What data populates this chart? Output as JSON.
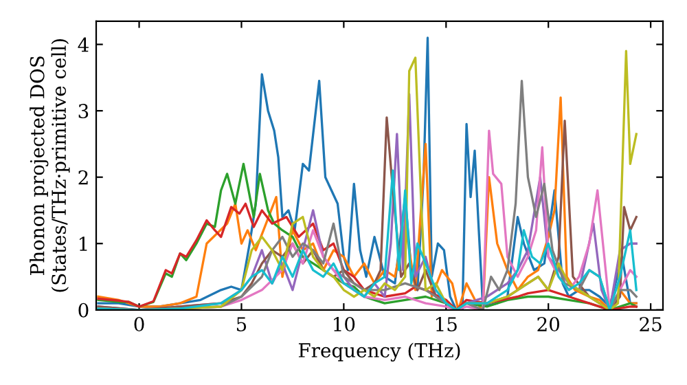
{
  "chart_data": {
    "type": "line",
    "xlabel": "Frequency (THz)",
    "ylabel": "Phonon projected DOS\n(States/THz·primitive cell)",
    "xlim": [
      -2.1,
      25.6
    ],
    "ylim": [
      0,
      4.35
    ],
    "xticks": [
      0,
      5,
      10,
      15,
      20,
      25
    ],
    "yticks": [
      0,
      1,
      2,
      3,
      4
    ],
    "grid": false,
    "legend": false,
    "marker": "none",
    "line_style": "solid",
    "series": [
      {
        "color": "#1f77b4",
        "x": [
          -2,
          -1,
          0,
          1,
          2,
          3,
          4,
          4.5,
          5,
          5.4,
          5.7,
          6,
          6.3,
          6.6,
          6.8,
          7,
          7.3,
          7.6,
          8,
          8.3,
          8.8,
          9.1,
          9.4,
          9.7,
          10,
          10.2,
          10.5,
          10.8,
          11.1,
          11.5,
          12,
          12.5,
          13,
          13.3,
          13.6,
          13.9,
          14.1,
          14.3,
          14.6,
          14.9,
          15.2,
          15.5,
          15.8,
          16,
          16.2,
          16.4,
          16.6,
          16.8,
          17.5,
          18,
          18.5,
          18.8,
          19.3,
          19.8,
          20.3,
          20.7,
          21,
          21.5,
          22,
          22.5,
          23,
          23.6,
          24,
          24.3
        ],
        "values": [
          0.1,
          0.1,
          0.05,
          0.05,
          0.1,
          0.15,
          0.3,
          0.35,
          0.3,
          1.0,
          1.6,
          3.55,
          3.0,
          2.7,
          2.3,
          1.4,
          1.5,
          1.2,
          2.2,
          2.1,
          3.45,
          2.0,
          1.8,
          1.6,
          0.8,
          0.6,
          1.9,
          0.9,
          0.5,
          1.1,
          0.5,
          0.4,
          1.7,
          0.6,
          0.3,
          2.0,
          4.1,
          0.5,
          1.0,
          0.9,
          0.2,
          0,
          0,
          2.8,
          1.7,
          2.4,
          1.2,
          0.05,
          0.1,
          0.2,
          1.4,
          1.0,
          0.6,
          0.7,
          1.8,
          0.4,
          0.2,
          0.3,
          0.3,
          0.2,
          0.05,
          0.8,
          0.1,
          0.1
        ]
      },
      {
        "color": "#ff7f0e",
        "x": [
          -2,
          -1,
          0,
          1,
          2,
          2.8,
          3.3,
          3.8,
          4.3,
          4.7,
          5,
          5.3,
          5.7,
          6.2,
          6.7,
          7,
          7.5,
          8,
          8.5,
          9,
          9.5,
          10,
          10.5,
          11,
          11.5,
          12,
          12.5,
          13,
          13.5,
          14,
          14.3,
          14.8,
          15.3,
          15.6,
          16,
          16.5,
          16.8,
          17.1,
          17.5,
          18,
          18.5,
          19,
          19.5,
          20,
          20.3,
          20.6,
          20.9,
          21.3,
          22,
          22.5,
          23,
          23.5,
          24,
          24.3
        ],
        "values": [
          0.2,
          0.15,
          0.05,
          0.05,
          0.1,
          0.2,
          1.0,
          1.15,
          1.3,
          1.6,
          1.0,
          1.2,
          0.9,
          1.3,
          1.7,
          0.5,
          1.2,
          0.9,
          1.0,
          0.6,
          0.9,
          0.8,
          0.5,
          0.7,
          0.4,
          0.6,
          0.5,
          1.3,
          0.3,
          2.5,
          0.2,
          0.6,
          0.4,
          0,
          0.4,
          0.1,
          0,
          2.0,
          1.0,
          0.6,
          0.3,
          0.5,
          0.6,
          1.1,
          1.5,
          3.2,
          0.5,
          0.3,
          0.2,
          0.15,
          0,
          0.3,
          0.1,
          0.1
        ]
      },
      {
        "color": "#2ca02c",
        "x": [
          -2,
          -1,
          -0.5,
          0,
          0.7,
          1.3,
          1.6,
          2,
          2.3,
          2.8,
          3.3,
          3.7,
          4,
          4.3,
          4.7,
          5.1,
          5.6,
          5.9,
          6.3,
          6.6,
          7,
          7.5,
          8,
          8.5,
          9,
          9.5,
          10,
          10.5,
          11,
          11.5,
          12,
          13,
          14,
          15,
          15.5,
          16,
          17,
          18,
          19,
          20,
          21,
          22,
          23,
          24,
          24.3
        ],
        "values": [
          0.15,
          0.12,
          0.12,
          0.05,
          0.12,
          0.55,
          0.5,
          0.85,
          0.75,
          1.0,
          1.3,
          1.25,
          1.8,
          2.05,
          1.6,
          2.2,
          1.4,
          2.05,
          1.5,
          1.3,
          1.2,
          1.1,
          0.8,
          0.7,
          0.6,
          0.5,
          0.4,
          0.35,
          0.2,
          0.15,
          0.1,
          0.15,
          0.2,
          0.1,
          0,
          0.1,
          0.05,
          0.15,
          0.2,
          0.2,
          0.15,
          0.1,
          0,
          0.1,
          0.05
        ]
      },
      {
        "color": "#d62728",
        "x": [
          -2,
          -1,
          -0.5,
          0,
          0.7,
          1.3,
          1.6,
          2,
          2.3,
          2.8,
          3.3,
          3.7,
          4,
          4.5,
          4.9,
          5.2,
          5.6,
          6,
          6.5,
          7.2,
          7.8,
          8.5,
          9,
          9.5,
          10,
          10.5,
          11,
          12,
          13,
          13.5,
          14,
          15,
          15.5,
          16,
          17,
          18.5,
          19,
          20,
          21,
          22,
          23,
          24,
          24.3
        ],
        "values": [
          0.17,
          0.14,
          0.12,
          0.05,
          0.13,
          0.6,
          0.55,
          0.85,
          0.8,
          1.05,
          1.35,
          1.2,
          1.1,
          1.55,
          1.45,
          1.6,
          1.25,
          1.5,
          1.3,
          1.4,
          1.1,
          1.3,
          0.9,
          1.0,
          0.6,
          0.5,
          0.3,
          0.2,
          0.25,
          0.35,
          0.3,
          0.15,
          0,
          0.15,
          0.1,
          0.2,
          0.25,
          0.3,
          0.2,
          0.1,
          0,
          0.05,
          0.05
        ]
      },
      {
        "color": "#9467bd",
        "x": [
          -2,
          0,
          2,
          4,
          5,
          5.5,
          6,
          6.5,
          7,
          7.5,
          8,
          8.5,
          9,
          9.5,
          10,
          10.5,
          11,
          11.5,
          12,
          12.3,
          12.6,
          12.9,
          13.2,
          13.5,
          14,
          14.5,
          15,
          15.5,
          16,
          17,
          18,
          18.5,
          19,
          19.6,
          20,
          21,
          21.5,
          22.2,
          22.6,
          23,
          23.5,
          24,
          24.3
        ],
        "values": [
          0.05,
          0,
          0.05,
          0.1,
          0.3,
          0.5,
          0.9,
          0.4,
          0.7,
          0.3,
          0.9,
          1.5,
          0.8,
          0.6,
          0.5,
          0.3,
          0.2,
          0.4,
          0.2,
          1.0,
          2.65,
          0.6,
          3.25,
          0.5,
          0.8,
          0.2,
          0.1,
          0,
          0.1,
          0.2,
          0.4,
          0.6,
          0.9,
          2.0,
          0.8,
          0.4,
          0.3,
          1.3,
          0.3,
          0,
          0.9,
          1.0,
          1.0
        ]
      },
      {
        "color": "#8c564b",
        "x": [
          -2,
          0,
          2,
          4,
          5,
          5.5,
          6,
          6.5,
          7,
          7.5,
          8,
          8.5,
          9,
          9.5,
          10,
          10.5,
          11,
          11.5,
          11.8,
          12.1,
          12.4,
          12.8,
          13.2,
          13.6,
          14,
          14.5,
          15,
          15.5,
          16,
          17,
          18,
          18.5,
          19,
          19.5,
          20,
          20.5,
          20.8,
          21.2,
          22,
          22.5,
          23,
          23.5,
          23.7,
          24,
          24.3
        ],
        "values": [
          0.05,
          0,
          0.05,
          0.1,
          0.2,
          0.4,
          0.7,
          0.9,
          0.8,
          1.0,
          0.7,
          0.9,
          0.6,
          0.5,
          0.6,
          0.4,
          0.3,
          0.4,
          0.6,
          2.9,
          1.8,
          0.5,
          0.7,
          0.3,
          0.6,
          0.2,
          0.1,
          0,
          0.1,
          0.1,
          0.2,
          0.3,
          0.4,
          0.5,
          0.3,
          0.8,
          2.85,
          0.5,
          0.2,
          0.1,
          0,
          0.2,
          1.55,
          1.2,
          1.4
        ]
      },
      {
        "color": "#e377c2",
        "x": [
          -2,
          0,
          2,
          4,
          5,
          6,
          7,
          7.5,
          8,
          8.5,
          9,
          9.5,
          10,
          10.5,
          11,
          12,
          13,
          14,
          15,
          15.5,
          16,
          16.8,
          17.1,
          17.3,
          17.7,
          18,
          18.5,
          19,
          19.4,
          19.7,
          20,
          20.5,
          21,
          21.5,
          22,
          22.4,
          22.8,
          23,
          23.5,
          24,
          24.3
        ],
        "values": [
          0.02,
          0,
          0.02,
          0.05,
          0.15,
          0.3,
          0.6,
          1.0,
          0.7,
          1.2,
          0.8,
          0.6,
          0.4,
          0.3,
          0.2,
          0.15,
          0.2,
          0.1,
          0.05,
          0,
          0.05,
          0,
          2.7,
          2.05,
          1.9,
          0.8,
          0.5,
          0.8,
          1.2,
          2.45,
          0.8,
          0.5,
          0.3,
          0.5,
          1.0,
          1.8,
          0.6,
          0,
          0.3,
          0.6,
          0.5
        ]
      },
      {
        "color": "#7f7f7f",
        "x": [
          -2,
          0,
          2,
          4,
          5,
          6,
          6.5,
          7,
          7.5,
          8,
          8.5,
          9,
          9.5,
          10,
          10.5,
          11,
          12,
          13,
          14,
          15,
          15.5,
          16,
          16.8,
          17.2,
          17.6,
          18,
          18.4,
          18.7,
          19,
          19.4,
          19.8,
          20.2,
          20.8,
          21.5,
          22,
          22.5,
          23,
          23.5,
          24,
          24.3
        ],
        "values": [
          0.02,
          0,
          0.02,
          0.05,
          0.2,
          0.5,
          0.9,
          1.1,
          0.8,
          1.0,
          0.9,
          0.7,
          1.3,
          0.5,
          0.4,
          0.3,
          0.3,
          0.4,
          0.3,
          0.1,
          0,
          0.1,
          0,
          0.5,
          0.3,
          0.6,
          1.6,
          3.45,
          2.0,
          1.4,
          1.9,
          0.9,
          0.4,
          0.3,
          0.6,
          0.5,
          0,
          0.3,
          0.3,
          0.2
        ]
      },
      {
        "color": "#bcbd22",
        "x": [
          -2,
          0,
          2,
          4,
          5,
          5.5,
          6,
          6.5,
          7,
          7.5,
          8,
          8.5,
          9,
          9.5,
          10,
          10.5,
          11,
          11.5,
          12,
          12.5,
          13,
          13.2,
          13.5,
          13.8,
          14,
          14.5,
          15,
          15.5,
          16,
          17,
          18,
          18.5,
          19,
          19.5,
          20,
          20.5,
          21,
          21.5,
          22,
          22.5,
          23,
          23.4,
          23.8,
          24,
          24.3
        ],
        "values": [
          0.02,
          0,
          0.02,
          0.05,
          0.3,
          0.9,
          1.1,
          0.9,
          0.6,
          1.3,
          1.4,
          0.8,
          0.6,
          0.5,
          0.3,
          0.2,
          0.3,
          0.2,
          0.4,
          0.3,
          0.5,
          3.6,
          3.8,
          1.5,
          0.3,
          0.4,
          0.1,
          0,
          0.1,
          0.1,
          0.2,
          0.3,
          0.4,
          0.5,
          0.3,
          0.7,
          0.4,
          0.3,
          0.2,
          0.1,
          0,
          0.1,
          3.9,
          2.2,
          2.65
        ]
      },
      {
        "color": "#17becf",
        "x": [
          -2,
          0,
          2,
          4,
          5,
          5.5,
          6,
          6.5,
          7,
          7.5,
          8,
          8.5,
          9,
          9.5,
          10,
          10.5,
          11,
          11.5,
          12,
          12.4,
          12.7,
          13,
          13.3,
          13.6,
          14,
          14.5,
          15,
          15.5,
          16,
          17,
          18,
          18.5,
          18.8,
          19.2,
          19.6,
          20,
          20.5,
          21,
          21.5,
          22,
          22.5,
          23,
          23.5,
          24,
          24.3
        ],
        "values": [
          0.02,
          0,
          0.02,
          0.1,
          0.3,
          0.5,
          0.6,
          0.4,
          0.8,
          0.5,
          0.9,
          0.6,
          0.5,
          0.7,
          0.4,
          0.3,
          0.2,
          0.4,
          0.5,
          2.1,
          0.6,
          1.8,
          0.4,
          1.0,
          0.7,
          0.3,
          0.1,
          0,
          0.1,
          0.1,
          0.3,
          0.6,
          1.2,
          0.8,
          0.7,
          1.0,
          0.5,
          0.3,
          0.4,
          0.6,
          0.5,
          0,
          0.5,
          1.2,
          0.3
        ]
      }
    ]
  }
}
